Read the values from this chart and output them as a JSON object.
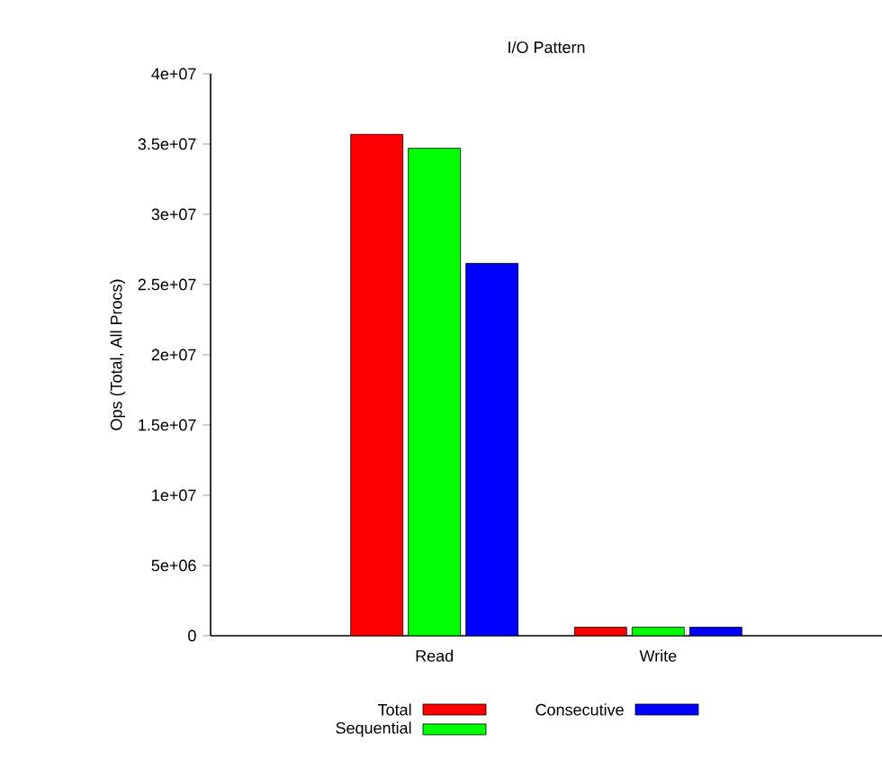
{
  "chart_data": {
    "type": "bar",
    "title": "I/O Pattern",
    "ylabel": "Ops (Total, All Procs)",
    "categories": [
      "Read",
      "Write"
    ],
    "series": [
      {
        "name": "Total",
        "color": "#ff0000",
        "values": [
          35700000,
          600000
        ]
      },
      {
        "name": "Sequential",
        "color": "#00ff00",
        "values": [
          34700000,
          600000
        ]
      },
      {
        "name": "Consecutive",
        "color": "#0000ff",
        "values": [
          26500000,
          600000
        ]
      }
    ],
    "ylim": [
      0,
      40000000
    ],
    "yticks": [
      {
        "value": 0,
        "label": "0"
      },
      {
        "value": 5000000,
        "label": "5e+06"
      },
      {
        "value": 10000000,
        "label": "1e+07"
      },
      {
        "value": 15000000,
        "label": "1.5e+07"
      },
      {
        "value": 20000000,
        "label": "2e+07"
      },
      {
        "value": 25000000,
        "label": "2.5e+07"
      },
      {
        "value": 30000000,
        "label": "3e+07"
      },
      {
        "value": 35000000,
        "label": "3.5e+07"
      },
      {
        "value": 40000000,
        "label": "4e+07"
      }
    ],
    "grid": false,
    "legend": "bottom"
  }
}
